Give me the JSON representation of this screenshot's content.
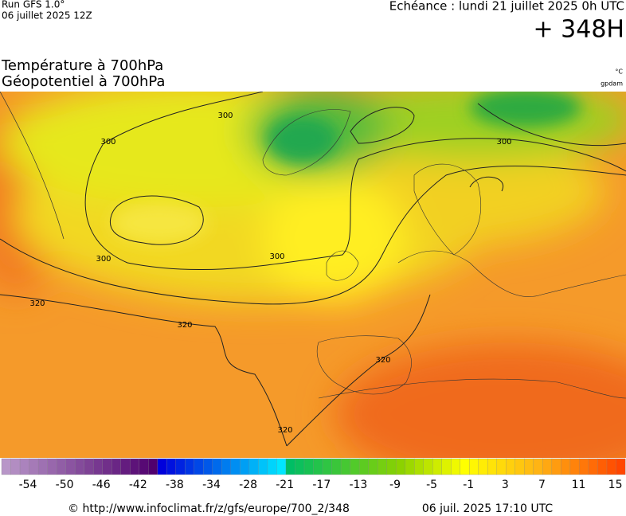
{
  "header": {
    "run": "Run GFS 1.0°",
    "run_date": "06 juillet 2025 12Z",
    "valid": "Echéance : lundi 21 juillet 2025 0h UTC",
    "lead": "+ 348H"
  },
  "titles": {
    "line1": "Température à 700hPa",
    "line2": "Géopotentiel à 700hPa",
    "unit1": "°C",
    "unit2": "gpdam"
  },
  "map": {
    "contour_labels": [
      "300",
      "300",
      "300",
      "300",
      "300",
      "320",
      "320",
      "320",
      "320"
    ]
  },
  "colorbar": {
    "labels": [
      "-54",
      "-50",
      "-46",
      "-42",
      "-38",
      "-34",
      "-28",
      "-21",
      "-17",
      "-13",
      "-9",
      "-5",
      "-1",
      "3",
      "7",
      "11",
      "15"
    ]
  },
  "footer": {
    "source": "© http://www.infoclimat.fr/z/gfs/europe/700_2/348",
    "generated": "06 juil. 2025 17:10 UTC"
  }
}
